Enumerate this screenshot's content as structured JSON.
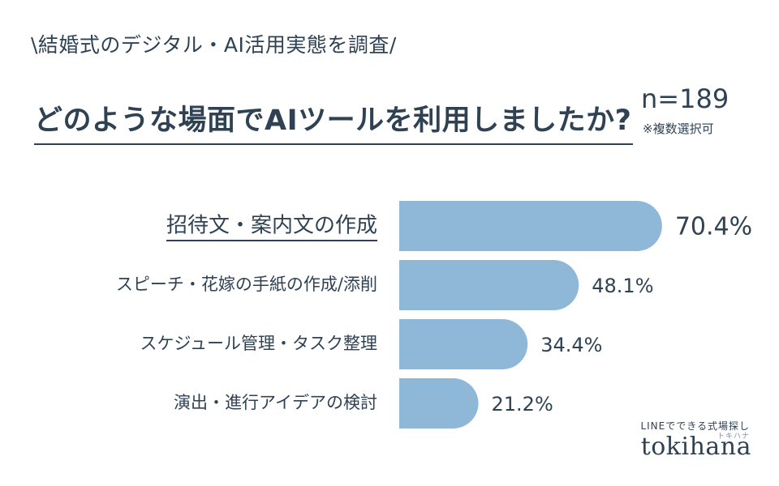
{
  "header": {
    "tagline": "\\結婚式のデジタル・AI活用実態を調査/",
    "title": "どのような場面でAIツールを利用しましたか?",
    "sample_size": "n=189",
    "note": "※複数選択可"
  },
  "brand": {
    "tagline": "LINEでできる式場探し",
    "kana": "トキハナ",
    "name": "tokihana"
  },
  "colors": {
    "bar": "#8fb8d8",
    "text": "#2f4254"
  },
  "chart_data": {
    "type": "bar",
    "orientation": "horizontal",
    "categories": [
      "招待文・案内文の作成",
      "スピーチ・花嫁の手紙の作成/添削",
      "スケジュール管理・タスク整理",
      "演出・進行アイデアの検討"
    ],
    "values": [
      70.4,
      48.1,
      34.4,
      21.2
    ],
    "value_labels": [
      "70.4%",
      "48.1%",
      "34.4%",
      "21.2%"
    ],
    "highlighted_category_index": 0
  }
}
